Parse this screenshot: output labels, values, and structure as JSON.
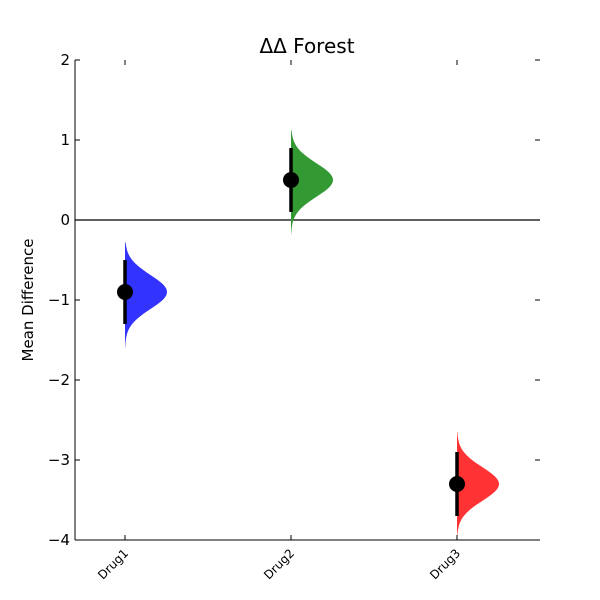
{
  "chart_data": {
    "type": "forest",
    "title": "ΔΔ Forest",
    "xlabel": "",
    "ylabel": "Mean Difference",
    "ylim": [
      -4,
      2
    ],
    "yticks": [
      2,
      1,
      0,
      -1,
      -2,
      -3,
      -4
    ],
    "ytick_labels": [
      "2",
      "1",
      "0",
      "−1",
      "−2",
      "−3",
      "−4"
    ],
    "reference_line": 0,
    "grid": false,
    "categories": [
      "Drug1",
      "Drug2",
      "Drug3"
    ],
    "series": [
      {
        "category": "Drug1",
        "mean": -0.9,
        "ci": [
          -1.3,
          -0.5
        ],
        "dist_range": [
          -1.6,
          -0.28
        ],
        "color": "#3333ff"
      },
      {
        "category": "Drug2",
        "mean": 0.5,
        "ci": [
          0.1,
          0.9
        ],
        "dist_range": [
          -0.18,
          1.12
        ],
        "color": "#339933"
      },
      {
        "category": "Drug3",
        "mean": -3.3,
        "ci": [
          -3.7,
          -2.9
        ],
        "dist_range": [
          -3.95,
          -2.65
        ],
        "color": "#ff3333"
      }
    ]
  }
}
